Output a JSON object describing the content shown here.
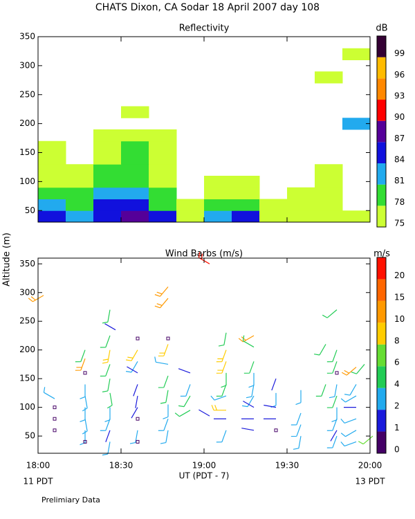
{
  "title": "CHATS Dixon, CA  Sodar  18 April 2007  day 108",
  "ylabel": "Altitude (m)",
  "xlabel": "UT  (PDT - 7)",
  "x_left_note": "11 PDT",
  "x_right_note": "13 PDT",
  "footnote": "Prelimiary Data",
  "chart_data": [
    {
      "type": "heatmap",
      "subtitle": "Reflectivity",
      "colorbar_title": "dB",
      "levels": [
        75,
        78,
        81,
        84,
        87,
        90,
        93,
        96,
        99
      ],
      "colors": [
        "#ccff33",
        "#33dd33",
        "#22aaee",
        "#1111dd",
        "#550099",
        "#ff0000",
        "#ff8800",
        "#ffbb00",
        "#330033"
      ],
      "x": [
        5,
        15,
        25,
        35,
        45,
        55,
        65,
        75,
        85,
        95,
        105,
        115
      ],
      "y": [
        40,
        60,
        80,
        100,
        120,
        140,
        160,
        180,
        200,
        220,
        240,
        260,
        280,
        300,
        320
      ],
      "values": [
        [
          84,
          81,
          85,
          88,
          84,
          75,
          81,
          84,
          75,
          75,
          75,
          75
        ],
        [
          81,
          79,
          84,
          85,
          80,
          75,
          78,
          79,
          75,
          75,
          75,
          null
        ],
        [
          78,
          78,
          81,
          82,
          78,
          null,
          76,
          77,
          null,
          75,
          75,
          null
        ],
        [
          77,
          76,
          79,
          80,
          77,
          null,
          75,
          75,
          null,
          null,
          75,
          null
        ],
        [
          76,
          75,
          78,
          79,
          76,
          null,
          null,
          null,
          null,
          null,
          75,
          null
        ],
        [
          75,
          null,
          77,
          78,
          75,
          null,
          null,
          null,
          null,
          null,
          null,
          null
        ],
        [
          75,
          null,
          76,
          78,
          75,
          null,
          null,
          null,
          null,
          null,
          null,
          null
        ],
        [
          null,
          null,
          75,
          75,
          75,
          null,
          null,
          null,
          null,
          null,
          null,
          null
        ],
        [
          null,
          null,
          null,
          null,
          null,
          null,
          null,
          null,
          null,
          null,
          null,
          83
        ],
        [
          null,
          null,
          null,
          75,
          null,
          null,
          null,
          null,
          null,
          null,
          null,
          null
        ],
        [
          null,
          null,
          null,
          null,
          null,
          null,
          null,
          null,
          null,
          null,
          null,
          null
        ],
        [
          null,
          null,
          null,
          null,
          null,
          null,
          null,
          null,
          null,
          null,
          null,
          null
        ],
        [
          null,
          null,
          null,
          null,
          null,
          null,
          null,
          null,
          null,
          null,
          75,
          null
        ],
        [
          null,
          null,
          null,
          null,
          null,
          null,
          null,
          null,
          null,
          null,
          null,
          null
        ],
        [
          null,
          null,
          null,
          null,
          null,
          null,
          null,
          null,
          null,
          null,
          null,
          75
        ]
      ],
      "xlim": [
        0,
        120
      ],
      "xticks": [
        0,
        30,
        60,
        90,
        120
      ],
      "xticklabels": false,
      "ylim": [
        30,
        350
      ],
      "yticks": [
        50,
        100,
        150,
        200,
        250,
        300,
        350
      ]
    },
    {
      "type": "barbs",
      "subtitle": "Wind Barbs (m/s)",
      "colorbar_title": "m/s",
      "levels": [
        0,
        1,
        2,
        4,
        6,
        8,
        10,
        15,
        20
      ],
      "colors": [
        "#440066",
        "#1a1adb",
        "#22aaee",
        "#22cc55",
        "#66dd33",
        "#ffcc00",
        "#ff9900",
        "#ff6600",
        "#ff1100"
      ],
      "x": [
        2,
        6,
        6,
        6,
        6,
        17,
        17,
        17,
        17,
        17,
        17,
        17,
        17,
        17,
        26,
        26,
        26,
        26,
        26,
        26,
        26,
        26,
        26,
        26,
        28,
        36,
        36,
        36,
        36,
        36,
        36,
        36,
        36,
        36,
        36,
        47,
        47,
        47,
        47,
        47,
        47,
        47,
        47,
        47,
        47,
        55,
        55,
        55,
        55,
        62,
        62,
        68,
        68,
        68,
        68,
        68,
        68,
        68,
        68,
        68,
        78,
        78,
        78,
        78,
        78,
        78,
        78,
        78,
        78,
        86,
        86,
        86,
        86,
        86,
        95,
        95,
        95,
        95,
        104,
        104,
        108,
        108,
        108,
        108,
        108,
        108,
        108,
        108,
        108,
        108,
        115,
        115,
        115,
        115,
        115,
        115,
        115,
        118,
        121
      ],
      "y": [
        295,
        115,
        100,
        80,
        60,
        200,
        185,
        160,
        140,
        120,
        100,
        80,
        60,
        40,
        270,
        225,
        200,
        175,
        150,
        125,
        100,
        80,
        60,
        40,
        235,
        220,
        200,
        180,
        160,
        140,
        120,
        100,
        80,
        60,
        40,
        310,
        290,
        220,
        210,
        175,
        155,
        130,
        105,
        80,
        60,
        160,
        140,
        120,
        95,
        85,
        350,
        230,
        200,
        180,
        160,
        140,
        120,
        95,
        80,
        60,
        225,
        205,
        180,
        160,
        140,
        120,
        100,
        80,
        60,
        150,
        125,
        100,
        80,
        60,
        130,
        90,
        70,
        50,
        140,
        210,
        270,
        200,
        180,
        160,
        140,
        120,
        100,
        80,
        60,
        50,
        170,
        140,
        120,
        100,
        80,
        60,
        40,
        175,
        50
      ],
      "values": [
        12,
        2,
        0,
        0,
        0,
        5,
        10,
        0,
        3,
        3,
        3,
        3,
        2,
        0,
        5,
        5,
        8,
        5,
        4,
        4,
        2,
        2,
        1,
        3,
        1,
        0,
        8,
        3,
        1,
        1,
        1,
        1,
        0,
        3,
        0,
        12,
        12,
        0,
        8,
        2,
        4,
        4,
        2,
        3,
        3,
        1,
        3,
        4,
        4,
        1,
        20,
        4,
        8,
        8,
        4,
        4,
        3,
        8,
        1,
        2,
        12,
        4,
        4,
        3,
        2,
        2,
        1,
        1,
        1,
        1,
        3,
        1,
        1,
        0,
        3,
        3,
        3,
        2,
        4,
        5,
        5,
        5,
        4,
        0,
        3,
        4,
        3,
        3,
        1,
        3,
        12,
        3,
        3,
        1,
        3,
        3,
        3,
        5,
        6
      ],
      "direction": [
        240,
        300,
        0,
        0,
        0,
        200,
        200,
        0,
        180,
        170,
        180,
        170,
        180,
        0,
        190,
        200,
        190,
        200,
        190,
        170,
        180,
        200,
        200,
        190,
        300,
        0,
        210,
        210,
        300,
        200,
        190,
        210,
        0,
        190,
        0,
        220,
        220,
        0,
        200,
        280,
        200,
        190,
        180,
        200,
        190,
        290,
        200,
        210,
        240,
        300,
        300,
        190,
        200,
        200,
        180,
        200,
        250,
        270,
        270,
        200,
        240,
        300,
        200,
        180,
        190,
        210,
        300,
        270,
        280,
        200,
        180,
        280,
        270,
        0,
        180,
        200,
        200,
        190,
        200,
        210,
        230,
        200,
        200,
        0,
        190,
        200,
        180,
        200,
        210,
        200,
        230,
        210,
        240,
        270,
        250,
        240,
        250,
        220,
        230
      ],
      "xlim": [
        0,
        120
      ],
      "xticks": [
        {
          "value": 0,
          "label": "18:00"
        },
        {
          "value": 30,
          "label": "18:30"
        },
        {
          "value": 60,
          "label": "19:00"
        },
        {
          "value": 90,
          "label": "19:30"
        },
        {
          "value": 120,
          "label": "20:00"
        }
      ],
      "xticklabels": true,
      "ylim": [
        20,
        360
      ],
      "yticks": [
        50,
        100,
        150,
        200,
        250,
        300,
        350
      ]
    }
  ]
}
